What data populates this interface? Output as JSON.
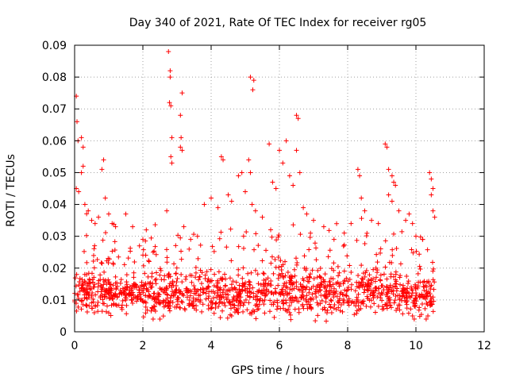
{
  "chart_data": {
    "type": "scatter",
    "title": "Day 340 of 2021, Rate Of TEC Index for receiver rg05",
    "xlabel": "GPS time / hours",
    "ylabel": "ROTI / TECUs",
    "xlim": [
      0,
      12
    ],
    "ylim": [
      0,
      0.09
    ],
    "x_ticks": [
      "0",
      "2",
      "4",
      "6",
      "8",
      "10",
      "12"
    ],
    "y_ticks": [
      "0",
      "0.01",
      "0.02",
      "0.03",
      "0.04",
      "0.05",
      "0.06",
      "0.07",
      "0.08",
      "0.09"
    ],
    "grid": true,
    "marker": "+",
    "color": "#ff0000",
    "series": [
      {
        "name": "ROTI",
        "points": [
          [
            0.05,
            0.074
          ],
          [
            0.07,
            0.066
          ],
          [
            0.1,
            0.06
          ],
          [
            0.05,
            0.045
          ],
          [
            0.12,
            0.044
          ],
          [
            0.2,
            0.05
          ],
          [
            0.25,
            0.052
          ],
          [
            0.2,
            0.061
          ],
          [
            0.25,
            0.058
          ],
          [
            0.3,
            0.04
          ],
          [
            0.4,
            0.038
          ],
          [
            0.5,
            0.035
          ],
          [
            0.6,
            0.034
          ],
          [
            0.7,
            0.036
          ],
          [
            0.8,
            0.051
          ],
          [
            0.85,
            0.054
          ],
          [
            0.9,
            0.042
          ],
          [
            1.0,
            0.037
          ],
          [
            1.1,
            0.034
          ],
          [
            1.2,
            0.033
          ],
          [
            1.5,
            0.037
          ],
          [
            1.7,
            0.033
          ],
          [
            1.9,
            0.027
          ],
          [
            2.0,
            0.029
          ],
          [
            2.1,
            0.032
          ],
          [
            2.3,
            0.025
          ],
          [
            2.75,
            0.088
          ],
          [
            2.8,
            0.082
          ],
          [
            2.8,
            0.08
          ],
          [
            2.78,
            0.072
          ],
          [
            2.82,
            0.071
          ],
          [
            2.85,
            0.061
          ],
          [
            2.82,
            0.055
          ],
          [
            2.85,
            0.053
          ],
          [
            2.7,
            0.038
          ],
          [
            3.15,
            0.075
          ],
          [
            3.1,
            0.068
          ],
          [
            3.12,
            0.061
          ],
          [
            3.1,
            0.058
          ],
          [
            3.15,
            0.057
          ],
          [
            3.2,
            0.033
          ],
          [
            3.4,
            0.029
          ],
          [
            3.6,
            0.03
          ],
          [
            3.8,
            0.04
          ],
          [
            4.0,
            0.042
          ],
          [
            4.2,
            0.039
          ],
          [
            4.3,
            0.055
          ],
          [
            4.35,
            0.054
          ],
          [
            4.5,
            0.043
          ],
          [
            4.6,
            0.041
          ],
          [
            4.8,
            0.049
          ],
          [
            4.9,
            0.05
          ],
          [
            5.0,
            0.044
          ],
          [
            5.15,
            0.08
          ],
          [
            5.25,
            0.079
          ],
          [
            5.22,
            0.076
          ],
          [
            5.1,
            0.054
          ],
          [
            5.15,
            0.05
          ],
          [
            5.2,
            0.04
          ],
          [
            5.3,
            0.038
          ],
          [
            5.5,
            0.036
          ],
          [
            5.7,
            0.059
          ],
          [
            5.8,
            0.047
          ],
          [
            5.9,
            0.045
          ],
          [
            6.0,
            0.057
          ],
          [
            6.1,
            0.053
          ],
          [
            6.2,
            0.06
          ],
          [
            6.3,
            0.049
          ],
          [
            6.4,
            0.046
          ],
          [
            6.5,
            0.068
          ],
          [
            6.55,
            0.067
          ],
          [
            6.5,
            0.057
          ],
          [
            6.6,
            0.05
          ],
          [
            6.7,
            0.039
          ],
          [
            6.8,
            0.037
          ],
          [
            7.0,
            0.035
          ],
          [
            7.3,
            0.033
          ],
          [
            7.6,
            0.029
          ],
          [
            7.9,
            0.031
          ],
          [
            8.1,
            0.034
          ],
          [
            8.3,
            0.051
          ],
          [
            8.35,
            0.049
          ],
          [
            8.4,
            0.042
          ],
          [
            8.5,
            0.038
          ],
          [
            8.7,
            0.035
          ],
          [
            8.9,
            0.034
          ],
          [
            9.1,
            0.059
          ],
          [
            9.15,
            0.058
          ],
          [
            9.2,
            0.051
          ],
          [
            9.3,
            0.049
          ],
          [
            9.35,
            0.047
          ],
          [
            9.4,
            0.046
          ],
          [
            9.2,
            0.043
          ],
          [
            9.3,
            0.041
          ],
          [
            9.5,
            0.038
          ],
          [
            9.7,
            0.035
          ],
          [
            9.8,
            0.037
          ],
          [
            9.9,
            0.034
          ],
          [
            10.0,
            0.03
          ],
          [
            10.2,
            0.029
          ],
          [
            10.4,
            0.05
          ],
          [
            10.45,
            0.048
          ],
          [
            10.5,
            0.045
          ],
          [
            10.45,
            0.043
          ],
          [
            10.5,
            0.038
          ],
          [
            10.55,
            0.036
          ],
          [
            10.3,
            0.004
          ],
          [
            10.35,
            0.005
          ],
          [
            9.9,
            0.005
          ],
          [
            9.95,
            0.004
          ],
          [
            2.3,
            0.004
          ],
          [
            2.5,
            0.004
          ],
          [
            4.6,
            0.005
          ],
          [
            4.8,
            0.006
          ],
          [
            6.3,
            0.006
          ]
        ],
        "dense_band": {
          "x_range": [
            0,
            10.55
          ],
          "y_center": 0.012,
          "y_spread": 0.006,
          "count": 1400
        }
      }
    ]
  }
}
